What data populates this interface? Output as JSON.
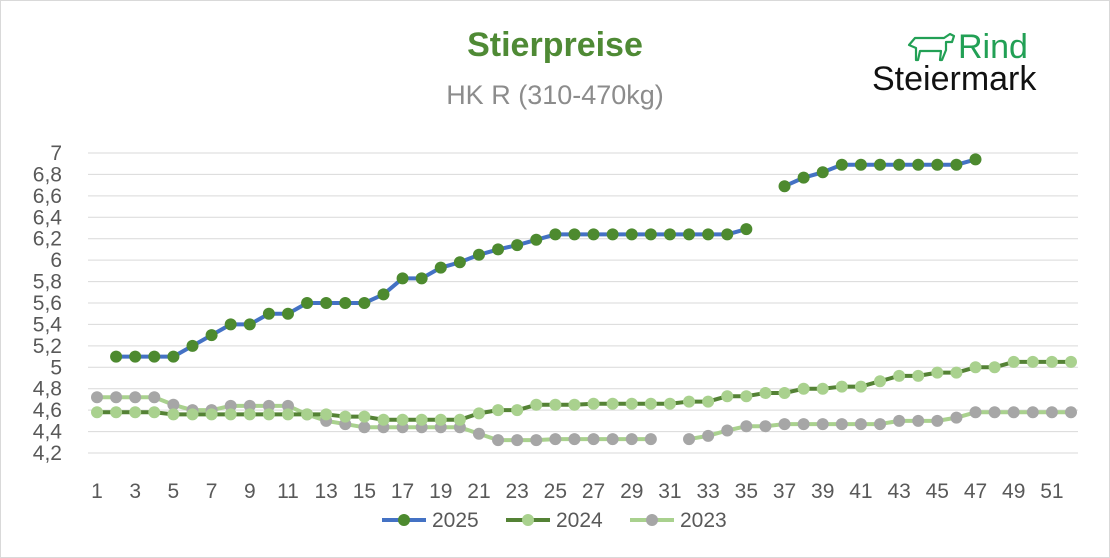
{
  "title": "Stierpreise",
  "subtitle": "HK R (310-470kg)",
  "logo": {
    "word1": "Rind",
    "word2": "Steiermark",
    "icon": "cow-icon"
  },
  "colors": {
    "title": "#4f8a35",
    "subtitle": "#8c8c8c",
    "logo_green": "#22a055"
  },
  "chart_data": {
    "type": "line",
    "title": "Stierpreise",
    "subtitle": "HK R (310-470kg)",
    "xlabel": "",
    "ylabel": "",
    "x": [
      1,
      2,
      3,
      4,
      5,
      6,
      7,
      8,
      9,
      10,
      11,
      12,
      13,
      14,
      15,
      16,
      17,
      18,
      19,
      20,
      21,
      22,
      23,
      24,
      25,
      26,
      27,
      28,
      29,
      30,
      31,
      32,
      33,
      34,
      35,
      36,
      37,
      38,
      39,
      40,
      41,
      42,
      43,
      44,
      45,
      46,
      47,
      48,
      49,
      50,
      51,
      52
    ],
    "x_tick_labels": [
      "1",
      "3",
      "5",
      "7",
      "9",
      "11",
      "13",
      "15",
      "17",
      "19",
      "21",
      "23",
      "25",
      "27",
      "29",
      "31",
      "33",
      "35",
      "37",
      "39",
      "41",
      "43",
      "45",
      "47",
      "49",
      "51"
    ],
    "ylim": [
      4.2,
      7.0
    ],
    "y_tick_labels": [
      "4,2",
      "4,4",
      "4,6",
      "4,8",
      "5",
      "5,2",
      "5,4",
      "5,6",
      "5,8",
      "6",
      "6,2",
      "6,4",
      "6,6",
      "6,8",
      "7"
    ],
    "grid": true,
    "legend_position": "bottom",
    "series": [
      {
        "name": "2025",
        "line_color": "#4472c4",
        "marker_color": "#4d8a2f",
        "values": [
          null,
          5.1,
          5.1,
          5.1,
          5.1,
          5.2,
          5.3,
          5.4,
          5.4,
          5.5,
          5.5,
          5.6,
          5.6,
          5.6,
          5.6,
          5.68,
          5.83,
          5.83,
          5.93,
          5.98,
          6.05,
          6.1,
          6.14,
          6.19,
          6.24,
          6.24,
          6.24,
          6.24,
          6.24,
          6.24,
          6.24,
          6.24,
          6.24,
          6.24,
          6.29,
          null,
          6.69,
          6.77,
          6.82,
          6.89,
          6.89,
          6.89,
          6.89,
          6.89,
          6.89,
          6.89,
          6.94,
          null,
          null,
          null,
          null,
          null
        ]
      },
      {
        "name": "2024",
        "line_color": "#548235",
        "marker_color": "#a9d18e",
        "values": [
          4.58,
          4.58,
          4.58,
          4.58,
          4.56,
          4.56,
          4.56,
          4.56,
          4.56,
          4.56,
          4.56,
          4.56,
          4.56,
          4.54,
          4.54,
          4.51,
          4.51,
          4.51,
          4.51,
          4.51,
          4.57,
          4.6,
          4.6,
          4.65,
          4.65,
          4.65,
          4.66,
          4.66,
          4.66,
          4.66,
          4.66,
          4.68,
          4.68,
          4.73,
          4.73,
          4.76,
          4.76,
          4.8,
          4.8,
          4.82,
          4.82,
          4.87,
          4.92,
          4.92,
          4.95,
          4.95,
          5.0,
          5.0,
          5.05,
          5.05,
          5.05,
          5.05
        ]
      },
      {
        "name": "2023",
        "line_color": "#a9d18e",
        "marker_color": "#a6a6a6",
        "values": [
          4.72,
          4.72,
          4.72,
          4.72,
          4.65,
          4.6,
          4.6,
          4.64,
          4.64,
          4.64,
          4.64,
          4.56,
          4.5,
          4.47,
          4.44,
          4.44,
          4.44,
          4.44,
          4.44,
          4.44,
          4.38,
          4.32,
          4.32,
          4.32,
          4.33,
          4.33,
          4.33,
          4.33,
          4.33,
          4.33,
          null,
          4.33,
          4.36,
          4.41,
          4.45,
          4.45,
          4.47,
          4.47,
          4.47,
          4.47,
          4.47,
          4.47,
          4.5,
          4.5,
          4.5,
          4.53,
          4.58,
          4.58,
          4.58,
          4.58,
          4.58,
          4.58
        ]
      }
    ]
  }
}
